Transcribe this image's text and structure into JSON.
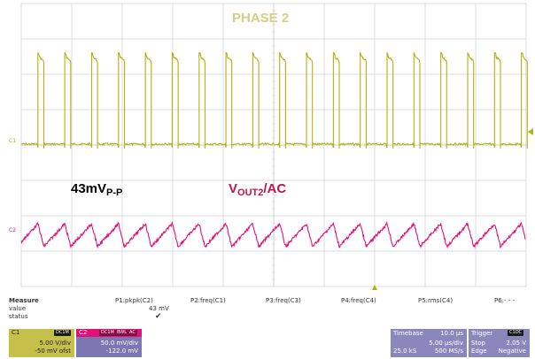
{
  "screen": {
    "title": "PHASE 2",
    "pp_value": "43mV",
    "pp_sub": "P-P",
    "vout_main": "V",
    "vout_sub": "OUT2",
    "vout_suffix": "/AC",
    "c1_marker": "C1",
    "c2_marker": "C2"
  },
  "colors": {
    "ch1": "#b5b011",
    "ch2": "#e0117a",
    "grid": "#d0d0d0"
  },
  "measure": {
    "row_labels": [
      "Measure",
      "value",
      "status"
    ],
    "columns": [
      {
        "name": "P1:pkpk(C2)",
        "value": "43 mV",
        "status": "✔"
      },
      {
        "name": "P2:freq(C1)",
        "value": "",
        "status": ""
      },
      {
        "name": "P3:freq(C3)",
        "value": "",
        "status": ""
      },
      {
        "name": "P4:freq(C4)",
        "value": "",
        "status": ""
      },
      {
        "name": "P5:rms(C4)",
        "value": "",
        "status": ""
      },
      {
        "name": "P6:- - -",
        "value": "",
        "status": ""
      }
    ]
  },
  "channels": [
    {
      "id": "C1",
      "coupling": "DC1M",
      "vdiv": "5.00 V/div",
      "offset": "-50 mV ofst"
    },
    {
      "id": "C2",
      "coupling": "DC1M",
      "bwl": "BWL",
      "extra": "AC",
      "vdiv": "50.0 mV/div",
      "offset": "-122.0 mV"
    }
  ],
  "timebase": {
    "label": "Timebase",
    "delay": "10.0 µs",
    "tdiv": "5.00 µs/div",
    "samples": "25.0 kS",
    "rate": "500 MS/s"
  },
  "trigger": {
    "label": "Trigger",
    "source": "C1",
    "coupling": "DC",
    "mode": "Stop",
    "level": "2.05 V",
    "type_label": "Edge",
    "slope": "Negative"
  },
  "chart_data": {
    "type": "line",
    "title": "PHASE 2",
    "x_unit": "µs",
    "x_range": [
      -25,
      25
    ],
    "series": [
      {
        "name": "C1",
        "kind": "pulse",
        "period_us": 2.66,
        "pulses": 19,
        "high_v": 25,
        "low_v": 0,
        "duty": 0.22
      },
      {
        "name": "C2",
        "kind": "triangle",
        "period_us": 2.66,
        "pkpk_mv": 43,
        "coupling": "AC"
      }
    ]
  }
}
